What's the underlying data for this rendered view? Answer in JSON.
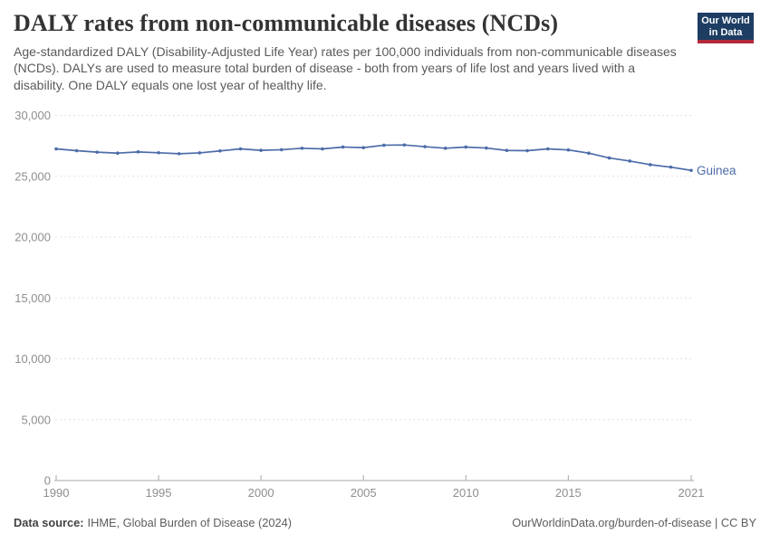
{
  "header": {
    "title": "DALY rates from non-communicable diseases (NCDs)",
    "subtitle": "Age-standardized DALY (Disability-Adjusted Life Year) rates per 100,000 individuals from non-communicable diseases (NCDs). DALYs are used to measure total burden of disease - both from years of life lost and years lived with a disability. One DALY equals one lost year of healthy life.",
    "logo": {
      "line1": "Our World",
      "line2": "in Data"
    }
  },
  "chart_data": {
    "type": "line",
    "title": "DALY rates from non-communicable diseases (NCDs)",
    "entity": "Guinea",
    "xlabel": "",
    "ylabel": "",
    "xlim": [
      1990,
      2021
    ],
    "ylim": [
      0,
      30000
    ],
    "x_ticks": [
      1990,
      1995,
      2000,
      2005,
      2010,
      2015,
      2021
    ],
    "y_ticks": [
      0,
      5000,
      10000,
      15000,
      20000,
      25000,
      30000
    ],
    "grid": "horizontal-dashed",
    "legend_position": "end-of-line-label",
    "series": [
      {
        "name": "Guinea",
        "color": "#4C6CA8",
        "x": [
          1990,
          1991,
          1992,
          1993,
          1994,
          1995,
          1996,
          1997,
          1998,
          1999,
          2000,
          2001,
          2002,
          2003,
          2004,
          2005,
          2006,
          2007,
          2008,
          2009,
          2010,
          2011,
          2012,
          2013,
          2014,
          2015,
          2016,
          2017,
          2018,
          2019,
          2020,
          2021
        ],
        "values": [
          27250,
          27100,
          26980,
          26900,
          27000,
          26930,
          26850,
          26920,
          27080,
          27250,
          27130,
          27180,
          27300,
          27250,
          27400,
          27350,
          27550,
          27570,
          27430,
          27300,
          27400,
          27320,
          27120,
          27100,
          27250,
          27160,
          26900,
          26500,
          26250,
          25950,
          25750,
          25480
        ]
      }
    ]
  },
  "footer": {
    "source_label": "Data source:",
    "source_text": "IHME, Global Burden of Disease (2024)",
    "credit": "OurWorldinData.org/burden-of-disease | CC BY"
  },
  "colors": {
    "series_blue": "#4C6CA8",
    "gridline": "#e0e0e0",
    "axis_line": "#a8a8a8",
    "axis_label": "#8e8e8e",
    "logo_background": "#1d3d63",
    "logo_accent_red": "#b0293a",
    "title_text": "#333333",
    "subtitle_text": "#5a5a5a"
  }
}
